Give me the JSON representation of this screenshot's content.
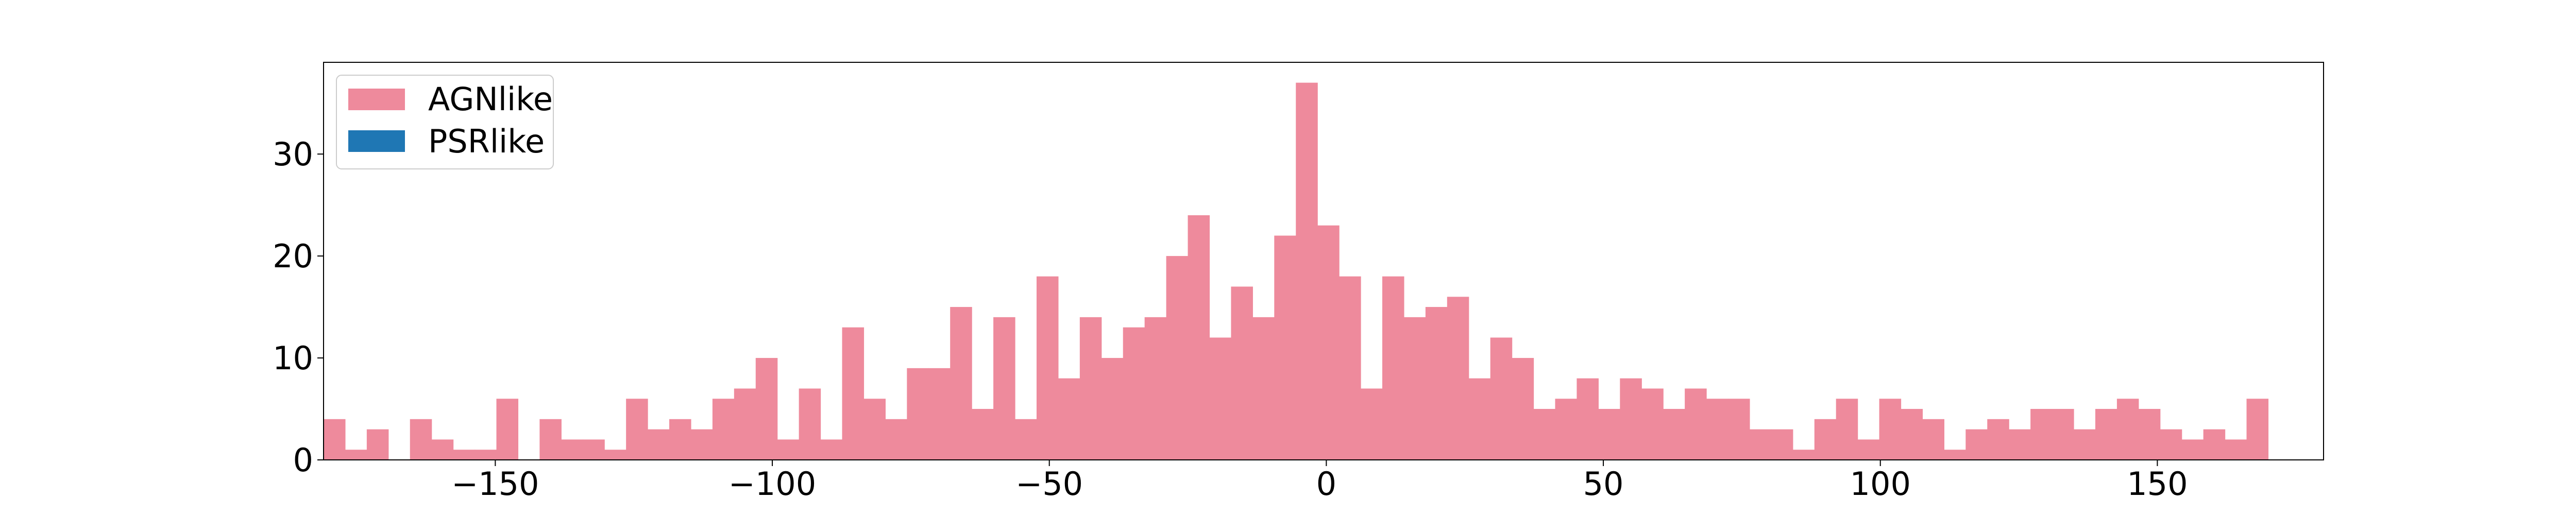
{
  "chart_data": {
    "type": "bar",
    "title": "",
    "xlabel": "",
    "ylabel": "",
    "xlim": [
      -181,
      180
    ],
    "ylim": [
      0,
      39
    ],
    "xticks": [
      -150,
      -100,
      -50,
      0,
      50,
      100,
      150
    ],
    "xtick_labels": [
      "−150",
      "−100",
      "−50",
      "0",
      "50",
      "100",
      "150"
    ],
    "yticks": [
      0,
      10,
      20,
      30
    ],
    "ytick_labels": [
      "0",
      "10",
      "20",
      "30"
    ],
    "grid": false,
    "legend_position": "upper-left",
    "bin_start": -181,
    "bin_width": 3.9,
    "series": [
      {
        "name": "AGNlike",
        "color": "#ee8a9c",
        "values": [
          4,
          1,
          3,
          0,
          4,
          2,
          1,
          1,
          6,
          0,
          4,
          2,
          2,
          1,
          6,
          3,
          4,
          3,
          6,
          7,
          10,
          2,
          7,
          2,
          13,
          6,
          4,
          9,
          9,
          15,
          5,
          14,
          4,
          18,
          8,
          14,
          10,
          13,
          14,
          20,
          24,
          12,
          17,
          14,
          22,
          37,
          23,
          18,
          7,
          18,
          14,
          15,
          16,
          8,
          12,
          10,
          5,
          6,
          8,
          5,
          8,
          7,
          5,
          7,
          6,
          6,
          3,
          3,
          1,
          4,
          6,
          2,
          6,
          5,
          4,
          1,
          3,
          4,
          3,
          5,
          5,
          3,
          5,
          6,
          5,
          3,
          2,
          3,
          2,
          6
        ]
      },
      {
        "name": "PSRlike",
        "color": "#1f77b4",
        "values": []
      }
    ]
  }
}
